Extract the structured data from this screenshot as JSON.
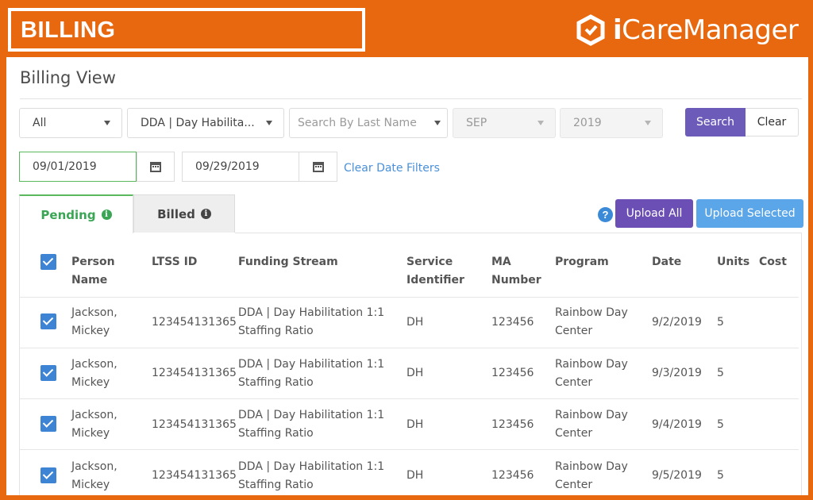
{
  "banner": {
    "title": "BILLING",
    "brand": {
      "prefix": "i",
      "name": "CareManager",
      "mark_icon": "caremanager-logo-mark"
    }
  },
  "page": {
    "title": "Billing View"
  },
  "filters": {
    "status": "All",
    "program": "DDA | Day Habilita...",
    "last_name_placeholder": "Search By Last Name",
    "month": "SEP",
    "year": "2019",
    "search_label": "Search",
    "clear_label": "Clear",
    "date_from": "09/01/2019",
    "date_to": "09/29/2019",
    "clear_dates_label": "Clear Date Filters"
  },
  "tabs": [
    {
      "label": "Pending",
      "active": true
    },
    {
      "label": "Billed",
      "active": false
    }
  ],
  "actions": {
    "help": "?",
    "upload_all": "Upload All",
    "upload_selected": "Upload Selected"
  },
  "table": {
    "headers": {
      "person_1": "Person",
      "person_2": "Name",
      "ltss": "LTSS ID",
      "funding": "Funding Stream",
      "service_1": "Service",
      "service_2": "Identifier",
      "ma_1": "MA",
      "ma_2": "Number",
      "program": "Program",
      "date": "Date",
      "units": "Units",
      "cost": "Cost"
    },
    "rows": [
      {
        "name_1": "Jackson,",
        "name_2": "Mickey",
        "ltss": "123454131365",
        "funding_1": "DDA | Day Habilitation 1:1",
        "funding_2": "Staffing Ratio",
        "service": "DH",
        "ma": "123456",
        "program_1": "Rainbow Day",
        "program_2": "Center",
        "date": "9/2/2019",
        "units": "5",
        "checked": true
      },
      {
        "name_1": "Jackson,",
        "name_2": "Mickey",
        "ltss": "123454131365",
        "funding_1": "DDA | Day Habilitation 1:1",
        "funding_2": "Staffing Ratio",
        "service": "DH",
        "ma": "123456",
        "program_1": "Rainbow Day",
        "program_2": "Center",
        "date": "9/3/2019",
        "units": "5",
        "checked": true
      },
      {
        "name_1": "Jackson,",
        "name_2": "Mickey",
        "ltss": "123454131365",
        "funding_1": "DDA | Day Habilitation 1:1",
        "funding_2": "Staffing Ratio",
        "service": "DH",
        "ma": "123456",
        "program_1": "Rainbow Day",
        "program_2": "Center",
        "date": "9/4/2019",
        "units": "5",
        "checked": true
      },
      {
        "name_1": "Jackson,",
        "name_2": "Mickey",
        "ltss": "123454131365",
        "funding_1": "DDA | Day Habilitation 1:1",
        "funding_2": "Staffing Ratio",
        "service": "DH",
        "ma": "123456",
        "program_1": "Rainbow Day",
        "program_2": "Center",
        "date": "9/5/2019",
        "units": "5",
        "checked": true
      }
    ]
  },
  "colors": {
    "frame": "#e8680f",
    "accent_purple": "#6b4fb5",
    "accent_blue": "#5aa6e9",
    "pending_green": "#3aa655"
  }
}
